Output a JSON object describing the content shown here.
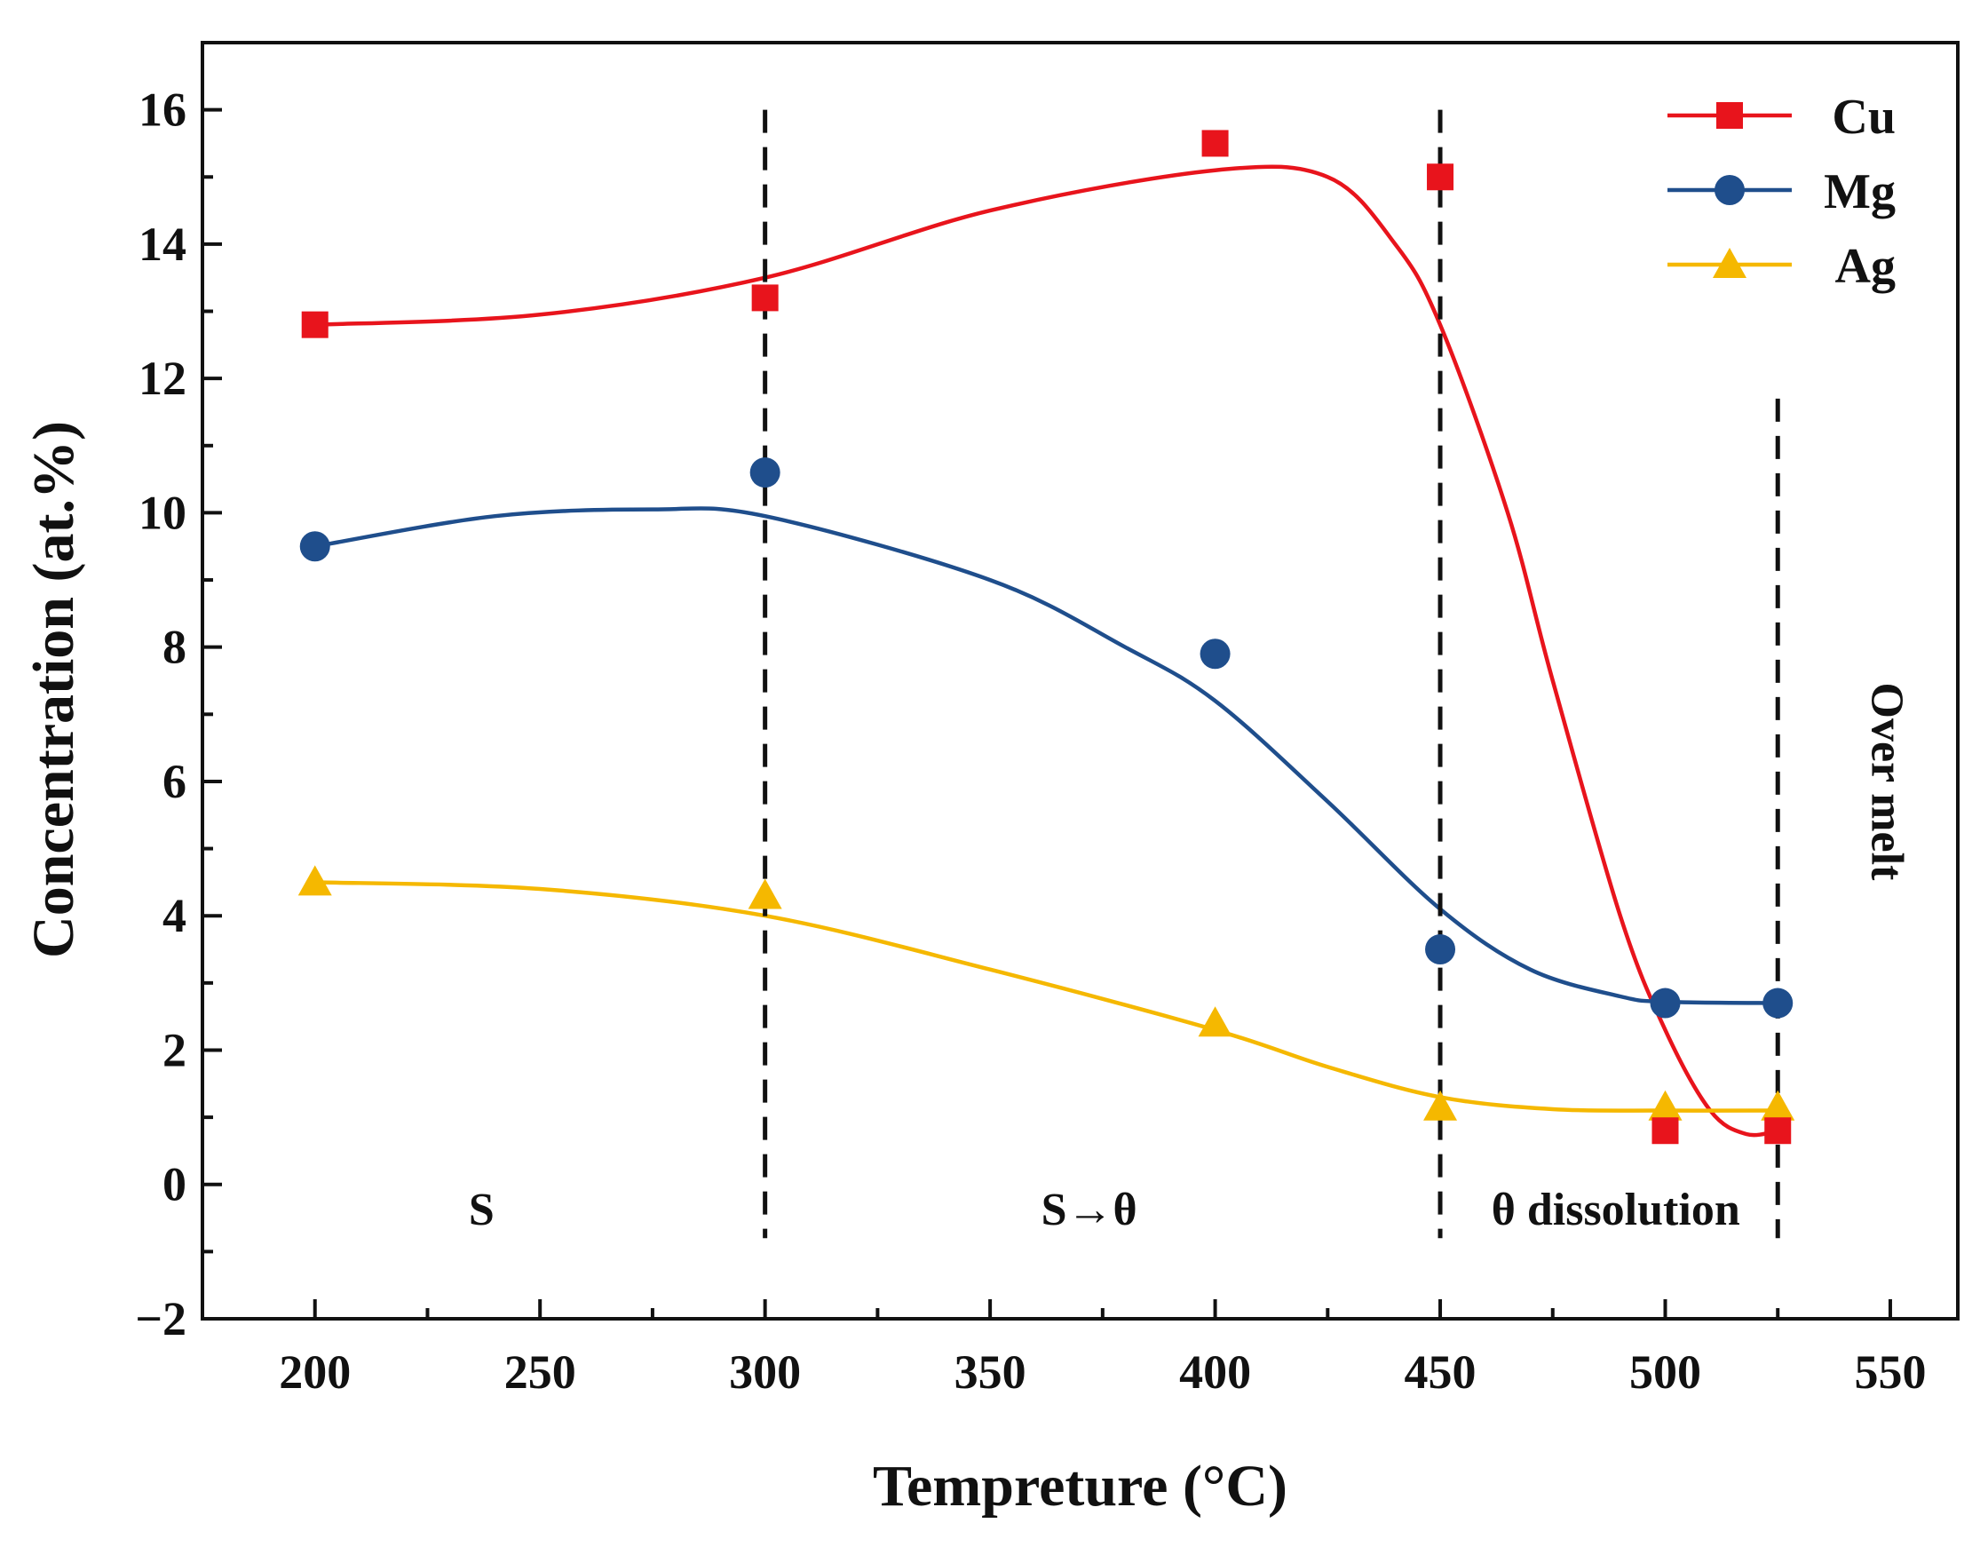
{
  "chart_data": {
    "type": "line",
    "title": "",
    "xlabel": "Tempreture (°C)",
    "ylabel": "Concentration (at.%)",
    "xlim": [
      175,
      565
    ],
    "ylim": [
      -2,
      17
    ],
    "xticks": [
      200,
      250,
      300,
      350,
      400,
      450,
      500,
      550
    ],
    "yticks": [
      -2,
      0,
      2,
      4,
      6,
      8,
      10,
      12,
      14,
      16
    ],
    "x": [
      200,
      300,
      400,
      450,
      500,
      525
    ],
    "legend_position": "top-right",
    "series": [
      {
        "name": "Cu",
        "marker": "square",
        "color": "#e8141c",
        "values": [
          12.8,
          13.2,
          15.5,
          15.0,
          0.8,
          0.8
        ],
        "fit": [
          [
            200,
            12.8
          ],
          [
            250,
            12.95
          ],
          [
            300,
            13.5
          ],
          [
            350,
            14.5
          ],
          [
            400,
            15.1
          ],
          [
            425,
            15.0
          ],
          [
            440,
            14.0
          ],
          [
            450,
            12.8
          ],
          [
            465,
            10.0
          ],
          [
            475,
            7.5
          ],
          [
            490,
            4.0
          ],
          [
            500,
            2.3
          ],
          [
            510,
            1.1
          ],
          [
            518,
            0.75
          ],
          [
            525,
            0.8
          ]
        ]
      },
      {
        "name": "Mg",
        "marker": "circle",
        "color": "#1f4e8c",
        "values": [
          9.5,
          10.6,
          7.9,
          3.5,
          2.7,
          2.7
        ],
        "fit": [
          [
            200,
            9.5
          ],
          [
            240,
            9.95
          ],
          [
            275,
            10.05
          ],
          [
            300,
            9.95
          ],
          [
            350,
            9.0
          ],
          [
            380,
            8.0
          ],
          [
            400,
            7.2
          ],
          [
            425,
            5.7
          ],
          [
            450,
            4.1
          ],
          [
            470,
            3.2
          ],
          [
            490,
            2.8
          ],
          [
            500,
            2.72
          ],
          [
            525,
            2.7
          ]
        ]
      },
      {
        "name": "Ag",
        "marker": "triangle",
        "color": "#f5b800",
        "values": [
          4.5,
          4.3,
          2.4,
          1.15,
          1.15,
          1.15
        ],
        "fit": [
          [
            200,
            4.5
          ],
          [
            250,
            4.4
          ],
          [
            300,
            4.0
          ],
          [
            350,
            3.2
          ],
          [
            400,
            2.3
          ],
          [
            425,
            1.75
          ],
          [
            450,
            1.3
          ],
          [
            475,
            1.12
          ],
          [
            500,
            1.1
          ],
          [
            525,
            1.1
          ]
        ]
      }
    ],
    "vlines": [
      {
        "x": 300,
        "y_from": -0.8,
        "y_to": 16
      },
      {
        "x": 450,
        "y_from": -0.8,
        "y_to": 16
      },
      {
        "x": 525,
        "y_from": -0.8,
        "y_to": 11.7
      }
    ],
    "annotations": [
      {
        "text": "S",
        "x": 237,
        "y": -0.6
      },
      {
        "text": "S→θ",
        "x": 372,
        "y": -0.6
      },
      {
        "text": "θ dissolution",
        "x": 489,
        "y": -0.6
      },
      {
        "text": "Over melt",
        "x": 546,
        "y": 6,
        "rotate": 90
      }
    ]
  }
}
